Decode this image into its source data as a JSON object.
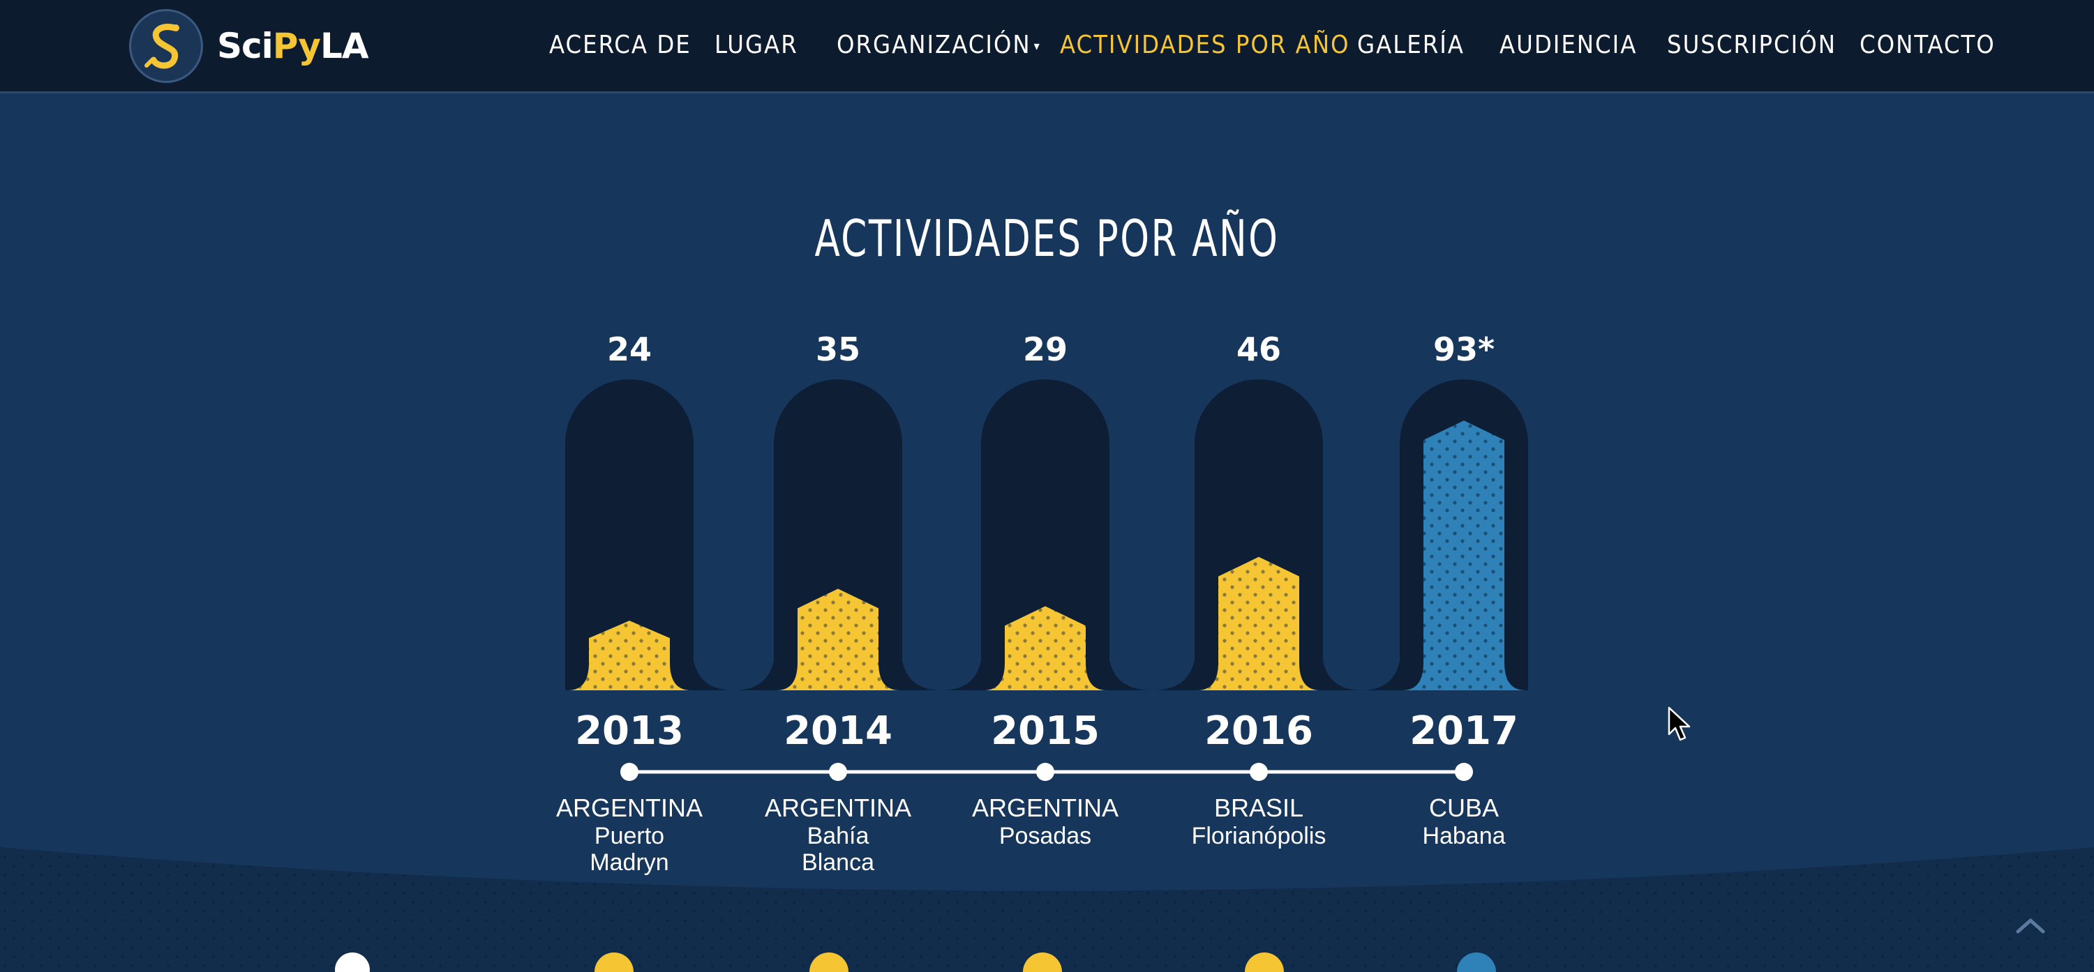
{
  "brand": {
    "logo_alt": "SciPyLA",
    "part1": "Sci",
    "part2": "Py",
    "part3": "LA"
  },
  "nav": {
    "items": [
      {
        "label": "ACERCA DE"
      },
      {
        "label": "LUGAR"
      },
      {
        "label": "ORGANIZACIÓN"
      },
      {
        "label": "ACTIVIDADES POR AÑO"
      },
      {
        "label": "GALERÍA"
      },
      {
        "label": "AUDIENCIA"
      },
      {
        "label": "SUSCRIPCIÓN"
      },
      {
        "label": "CONTACTO"
      }
    ],
    "active": "ACTIVIDADES POR AÑO"
  },
  "section": {
    "title": "ACTIVIDADES POR AÑO"
  },
  "colors": {
    "background": "#16365c",
    "navbar": "#0d1b2f",
    "accent_yellow": "#f5c533",
    "accent_blue": "#2f82b8",
    "column_dark": "#0e1f35",
    "text": "#ffffff"
  },
  "chart_data": {
    "type": "bar",
    "title": "ACTIVIDADES POR AÑO",
    "categories": [
      "2013",
      "2014",
      "2015",
      "2016",
      "2017"
    ],
    "values": [
      24,
      35,
      29,
      46,
      93
    ],
    "value_labels": [
      "24",
      "35",
      "29",
      "46",
      "93*"
    ],
    "locations": [
      {
        "country": "ARGENTINA",
        "city": "Puerto Madryn",
        "city_lines": [
          "Puerto",
          "Madryn"
        ]
      },
      {
        "country": "ARGENTINA",
        "city": "Bahía Blanca",
        "city_lines": [
          "Bahía",
          "Blanca"
        ]
      },
      {
        "country": "ARGENTINA",
        "city": "Posadas",
        "city_lines": [
          "Posadas"
        ]
      },
      {
        "country": "BRASIL",
        "city": "Florianópolis",
        "city_lines": [
          "Florianópolis"
        ]
      },
      {
        "country": "CUBA",
        "city": "Habana",
        "city_lines": [
          "Habana"
        ]
      }
    ],
    "bar_colors": [
      "#f5c533",
      "#f5c533",
      "#f5c533",
      "#f5c533",
      "#2f82b8"
    ],
    "ylim": [
      0,
      100
    ]
  },
  "icons": {
    "cursor": "mouse-pointer-icon",
    "scroll_top": "chevron-up-icon",
    "logo": "python-snake-icon"
  }
}
